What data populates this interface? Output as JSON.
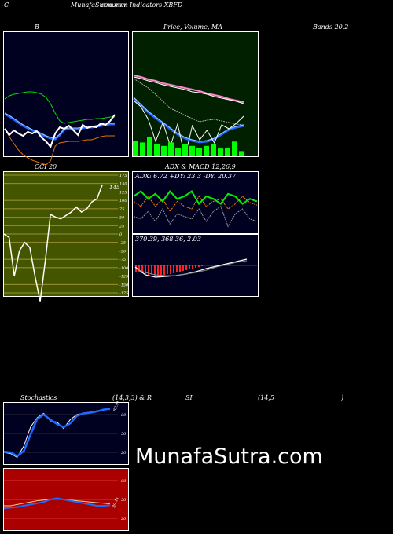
{
  "header": {
    "c": "C",
    "site": "MunafaSutra.com",
    "subtitle": "common Indicators XBFD",
    "b": "B",
    "price_ma": "Price, Volume, MA",
    "bands": "Bands 20,2",
    "cci": "CCI 20",
    "adx_macd": "ADX & MACD 12,26,9",
    "stoch_a": "Stochastics",
    "stoch_b": "(14,3,3) & R",
    "stoch_c": "SI",
    "stoch_d": "(14,5",
    "stoch_e": ")"
  },
  "watermark": "MunafaSutra.com",
  "colors": {
    "navy": "#000020",
    "darkgreen": "#002000",
    "olive": "#445500",
    "red_bg": "#aa0000",
    "blue": "#1e6aff",
    "green": "#00ff00",
    "orange": "#e07000",
    "pink": "#ff88cc"
  },
  "chart_data": [
    {
      "type": "line",
      "name": "bollinger",
      "series": [
        {
          "values": [
            86,
            82,
            80,
            79,
            78,
            77,
            77,
            78,
            80,
            84,
            92,
            104,
            114,
            117,
            116,
            115,
            114,
            113,
            112,
            112,
            111,
            111,
            110,
            109,
            109
          ]
        },
        {
          "values": [
            105,
            108,
            112,
            116,
            120,
            123,
            126,
            128,
            131,
            134,
            136,
            137,
            132,
            125,
            124,
            124,
            124,
            123,
            122,
            122,
            121,
            120,
            119,
            118,
            118
          ]
        },
        {
          "values": [
            124,
            134,
            143,
            151,
            157,
            161,
            164,
            166,
            168,
            170,
            165,
            146,
            142,
            141,
            140,
            140,
            140,
            139,
            138,
            138,
            136,
            134,
            133,
            133,
            133
          ]
        },
        {
          "values": [
            124,
            132,
            126,
            130,
            133,
            128,
            130,
            127,
            135,
            140,
            147,
            130,
            122,
            124,
            120,
            126,
            132,
            119,
            123,
            121,
            122,
            117,
            119,
            114,
            106
          ]
        }
      ]
    },
    {
      "type": "line",
      "name": "price_volume_ma",
      "series": [
        {
          "values": [
            56,
            58,
            61,
            63,
            66,
            68,
            70,
            72,
            74,
            76,
            79,
            81,
            83,
            86,
            88,
            90
          ]
        },
        {
          "values": [
            58,
            60,
            63,
            65,
            68,
            70,
            72,
            74,
            77,
            78,
            80,
            83,
            85,
            87,
            89,
            92
          ]
        },
        {
          "values": [
            60,
            66,
            72,
            80,
            89,
            98,
            102,
            107,
            111,
            115,
            113,
            112,
            114,
            116,
            118,
            119
          ]
        },
        {
          "values": [
            85,
            94,
            103,
            110,
            117,
            124,
            131,
            136,
            139,
            141,
            140,
            137,
            131,
            125,
            122,
            120
          ]
        },
        {
          "values": [
            88,
            96,
            112,
            140,
            116,
            146,
            118,
            160,
            120,
            138,
            126,
            142,
            119,
            124,
            117,
            108
          ]
        }
      ],
      "volume": [
        18,
        16,
        22,
        14,
        12,
        16,
        10,
        14,
        12,
        10,
        12,
        14,
        9,
        10,
        17,
        6
      ]
    },
    {
      "type": "line",
      "name": "cci",
      "ylabels": [
        "175",
        "150",
        "125",
        "100",
        "75",
        "50",
        "25",
        "0",
        "-25",
        "-50",
        "-75",
        "-100",
        "-125",
        "-150",
        "-175"
      ],
      "values": [
        0,
        -10,
        -125,
        -50,
        -25,
        -40,
        -125,
        -200,
        -80,
        58,
        50,
        45,
        55,
        65,
        80,
        65,
        75,
        95,
        105,
        145
      ],
      "current_label": "145"
    },
    {
      "type": "line",
      "name": "adx",
      "text": "ADX: 6.72  +DY: 23.3 -DY: 20.37",
      "series": [
        {
          "values": [
            26,
            22,
            30,
            22,
            28,
            18,
            26,
            22,
            20,
            30,
            22,
            26,
            28,
            20,
            24,
            30,
            25,
            23
          ]
        },
        {
          "values": [
            30,
            34,
            28,
            32,
            26,
            34,
            28,
            30,
            34,
            24,
            30,
            28,
            24,
            32,
            30,
            24,
            28,
            26
          ]
        },
        {
          "values": [
            14,
            12,
            18,
            10,
            20,
            8,
            16,
            14,
            12,
            20,
            10,
            18,
            22,
            6,
            16,
            20,
            12,
            10
          ]
        }
      ]
    },
    {
      "type": "bar",
      "name": "macd",
      "text": "370.39,  368.36,  2.03",
      "histogram": [
        -8,
        -9,
        -10,
        -11,
        -12,
        -12,
        -13,
        -13,
        -12,
        -12,
        -11,
        -11,
        -10,
        -9,
        -8,
        -7,
        -6,
        -5,
        -4,
        -3,
        -2,
        -1
      ],
      "lines": [
        [
          2,
          12,
          15,
          14,
          13,
          11,
          8,
          4,
          1,
          -2,
          -5,
          -8
        ],
        [
          4,
          9,
          12,
          13,
          13,
          11,
          9,
          6,
          2,
          -1,
          -4,
          -6
        ]
      ]
    },
    {
      "type": "line",
      "name": "stochastics",
      "ylabels": [
        "80",
        "50",
        "20"
      ],
      "series": [
        {
          "values": [
            20,
            18,
            12,
            30,
            60,
            75,
            82,
            70,
            68,
            58,
            72,
            80,
            82,
            84,
            86,
            87,
            90
          ]
        },
        {
          "values": [
            21,
            20,
            14,
            22,
            48,
            73,
            80,
            72,
            65,
            60,
            66,
            78,
            82,
            83,
            85,
            88,
            89
          ]
        }
      ],
      "current_label": "89.91"
    },
    {
      "type": "line",
      "name": "rsi",
      "ylabels": [
        "80",
        "50",
        "20"
      ],
      "series": [
        {
          "values": [
            36,
            37,
            38,
            40,
            42,
            44,
            46,
            50,
            52,
            50,
            48,
            46,
            44,
            42,
            40,
            40,
            41
          ]
        },
        {
          "values": [
            40,
            40,
            42,
            44,
            46,
            48,
            49,
            50,
            51,
            50,
            49,
            48,
            47,
            46,
            45,
            44,
            43
          ]
        }
      ],
      "current_label": "39.11"
    }
  ]
}
